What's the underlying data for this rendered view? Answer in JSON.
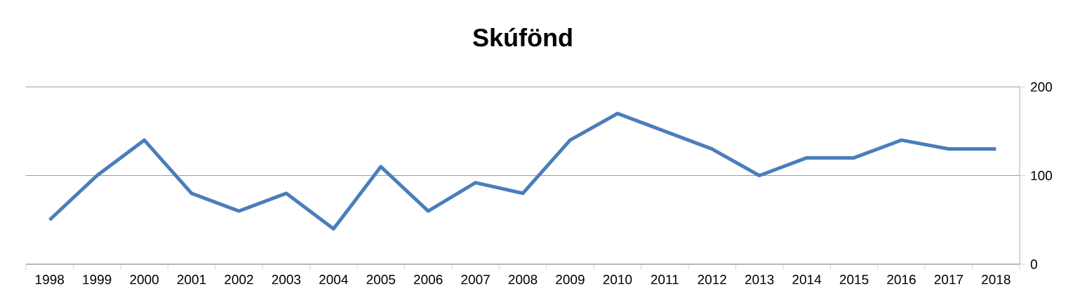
{
  "chart_data": {
    "type": "line",
    "title": "Skúfönd",
    "categories": [
      "1998",
      "1999",
      "2000",
      "2001",
      "2002",
      "2003",
      "2004",
      "2005",
      "2006",
      "2007",
      "2008",
      "2009",
      "2010",
      "2011",
      "2012",
      "2013",
      "2014",
      "2015",
      "2016",
      "2017",
      "2018"
    ],
    "values": [
      50,
      100,
      140,
      80,
      60,
      80,
      40,
      110,
      60,
      92,
      80,
      140,
      170,
      150,
      130,
      100,
      120,
      120,
      140,
      130,
      130
    ],
    "color": "#4a7ebb",
    "ylim": [
      0,
      200
    ],
    "yticks": [
      0,
      100,
      200
    ],
    "grid": "y",
    "line_style": "solid"
  }
}
